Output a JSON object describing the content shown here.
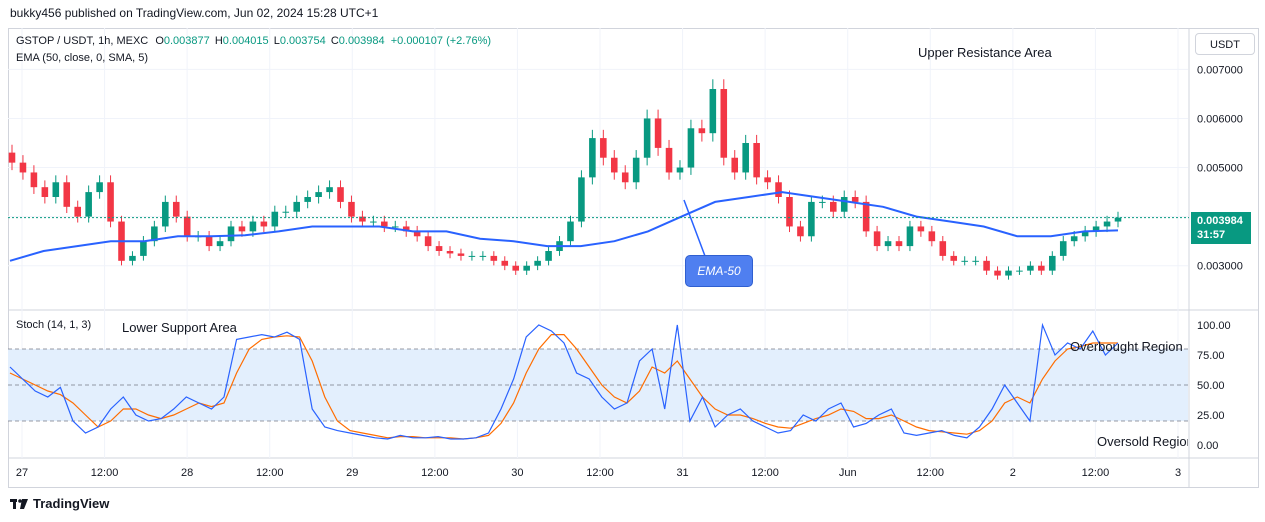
{
  "header": {
    "publish_line": "bukky456 published on TradingView.com, Jun 02, 2024 15:28 UTC+1"
  },
  "legend": {
    "symbol": "GSTOP / USDT, 1h, MEXC",
    "open_label": "O",
    "open": "0.003877",
    "high_label": "H",
    "high": "0.004015",
    "low_label": "L",
    "low": "0.003754",
    "close_label": "C",
    "close": "0.003984",
    "change": "+0.000107 (+2.76%)",
    "ema_line": "EMA (50, close, 0, SMA, 5)",
    "stoch_line": "Stoch (14, 1, 3)"
  },
  "annotations": {
    "upper": "Upper Resistance Area",
    "lower": "Lower Support Area",
    "overbought": "Overbought Region",
    "oversold": "Oversold Region",
    "ema_callout": "EMA-50"
  },
  "axis": {
    "currency": "USDT",
    "last_price": "0.003984",
    "countdown": "31:57"
  },
  "footer": {
    "brand": "TradingView"
  },
  "colors": {
    "up": "#089981",
    "down": "#f23645",
    "ema": "#2962ff",
    "stoch_k": "#2962ff",
    "stoch_d": "#ff6d00",
    "band": "#e3effd"
  },
  "chart_data": {
    "type": "candlestick",
    "title": "GSTOP / USDT, 1h, MEXC",
    "price_ticks": [
      "0.003000",
      "0.004000",
      "0.005000",
      "0.006000",
      "0.007000"
    ],
    "price_tick_values": [
      0.003,
      0.004,
      0.005,
      0.006,
      0.007
    ],
    "price_range": [
      0.0022,
      0.0077
    ],
    "time_labels": [
      "27",
      "12:00",
      "28",
      "12:00",
      "29",
      "12:00",
      "30",
      "12:00",
      "31",
      "12:00",
      "Jun",
      "12:00",
      "2",
      "12:00",
      "3"
    ],
    "stoch_ticks": [
      "100.00",
      "75.00",
      "50.00",
      "25.00",
      "0.00"
    ],
    "stoch_tick_values": [
      100,
      75,
      50,
      25,
      0
    ],
    "stoch_levels": [
      80,
      50,
      20
    ],
    "close_series": [
      0.0051,
      0.0049,
      0.0046,
      0.0044,
      0.0047,
      0.0042,
      0.004,
      0.0045,
      0.0047,
      0.0039,
      0.0031,
      0.0032,
      0.0035,
      0.0038,
      0.0043,
      0.004,
      0.0036,
      0.0036,
      0.0034,
      0.0035,
      0.0038,
      0.0037,
      0.0039,
      0.0038,
      0.0041,
      0.0041,
      0.0043,
      0.0044,
      0.0045,
      0.0046,
      0.0043,
      0.004,
      0.0039,
      0.0039,
      0.0038,
      0.0038,
      0.0037,
      0.0036,
      0.0034,
      0.0033,
      0.00325,
      0.0032,
      0.0032,
      0.0032,
      0.0031,
      0.003,
      0.0029,
      0.003,
      0.0031,
      0.0033,
      0.0035,
      0.0039,
      0.0048,
      0.0056,
      0.0052,
      0.0049,
      0.0047,
      0.0052,
      0.006,
      0.0054,
      0.0049,
      0.005,
      0.0058,
      0.0057,
      0.0066,
      0.0052,
      0.0049,
      0.0055,
      0.0048,
      0.0047,
      0.0044,
      0.0038,
      0.0036,
      0.0043,
      0.0043,
      0.0041,
      0.0044,
      0.0043,
      0.0037,
      0.0034,
      0.0035,
      0.0034,
      0.0038,
      0.0037,
      0.0035,
      0.0032,
      0.0031,
      0.0031,
      0.0031,
      0.0029,
      0.0028,
      0.0029,
      0.0029,
      0.003,
      0.0029,
      0.0032,
      0.0035,
      0.0036,
      0.0037,
      0.0038,
      0.0039,
      0.00398
    ],
    "ema50_series": [
      0.0031,
      0.0033,
      0.0034,
      0.0035,
      0.0035,
      0.0036,
      0.0036,
      0.00362,
      0.0037,
      0.0038,
      0.0038,
      0.0038,
      0.0037,
      0.0037,
      0.00355,
      0.0035,
      0.0034,
      0.0034,
      0.0035,
      0.0037,
      0.004,
      0.0043,
      0.0044,
      0.0045,
      0.0044,
      0.0043,
      0.0042,
      0.004,
      0.0039,
      0.0038,
      0.0036,
      0.0036,
      0.0037,
      0.00372
    ],
    "stoch_k": [
      65,
      55,
      45,
      40,
      48,
      20,
      10,
      15,
      30,
      40,
      25,
      20,
      22,
      30,
      40,
      35,
      30,
      40,
      88,
      90,
      92,
      90,
      94,
      88,
      30,
      15,
      12,
      10,
      8,
      6,
      5,
      8,
      6,
      6,
      7,
      5,
      5,
      6,
      10,
      30,
      55,
      90,
      100,
      95,
      85,
      60,
      55,
      40,
      30,
      35,
      70,
      80,
      30,
      100,
      20,
      40,
      15,
      25,
      30,
      20,
      15,
      10,
      12,
      25,
      20,
      30,
      35,
      15,
      18,
      25,
      30,
      10,
      8,
      10,
      12,
      8,
      6,
      15,
      30,
      50,
      35,
      20,
      100,
      75,
      85,
      80,
      95,
      75,
      85
    ],
    "stoch_d": [
      60,
      55,
      50,
      45,
      42,
      35,
      25,
      15,
      20,
      30,
      30,
      25,
      22,
      25,
      30,
      35,
      32,
      35,
      60,
      80,
      88,
      90,
      91,
      90,
      70,
      40,
      20,
      12,
      10,
      8,
      6,
      7,
      7,
      6,
      6,
      6,
      5,
      6,
      8,
      18,
      35,
      60,
      80,
      92,
      92,
      80,
      65,
      50,
      40,
      35,
      45,
      65,
      60,
      70,
      55,
      40,
      30,
      25,
      25,
      22,
      18,
      15,
      14,
      18,
      22,
      25,
      30,
      28,
      22,
      22,
      25,
      20,
      15,
      12,
      11,
      10,
      9,
      12,
      20,
      35,
      40,
      35,
      55,
      70,
      80,
      82,
      85,
      85,
      85
    ]
  }
}
